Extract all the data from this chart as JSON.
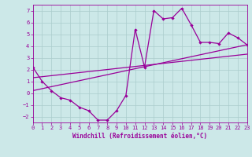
{
  "xlabel": "Windchill (Refroidissement éolien,°C)",
  "bg_color": "#cce8e8",
  "line_color": "#990099",
  "grid_color": "#aacccc",
  "xlim": [
    0,
    23
  ],
  "ylim": [
    -2.5,
    7.5
  ],
  "xticks": [
    0,
    1,
    2,
    3,
    4,
    5,
    6,
    7,
    8,
    9,
    10,
    11,
    12,
    13,
    14,
    15,
    16,
    17,
    18,
    19,
    20,
    21,
    22,
    23
  ],
  "yticks": [
    -2,
    -1,
    0,
    1,
    2,
    3,
    4,
    5,
    6,
    7
  ],
  "curve1_x": [
    0,
    1,
    2,
    3,
    4,
    5,
    6,
    7,
    8,
    9,
    10,
    11,
    12,
    13,
    14,
    15,
    16,
    17,
    18,
    19,
    20,
    21,
    22,
    23
  ],
  "curve1_y": [
    2.2,
    1.0,
    0.2,
    -0.4,
    -0.6,
    -1.2,
    -1.5,
    -2.3,
    -2.3,
    -1.5,
    -0.2,
    5.4,
    2.2,
    7.0,
    6.3,
    6.4,
    7.2,
    5.8,
    4.3,
    4.3,
    4.2,
    5.1,
    4.7,
    4.1
  ],
  "line2_x": [
    0,
    23
  ],
  "line2_y": [
    0.2,
    4.1
  ],
  "line3_x": [
    0,
    23
  ],
  "line3_y": [
    1.3,
    3.3
  ]
}
